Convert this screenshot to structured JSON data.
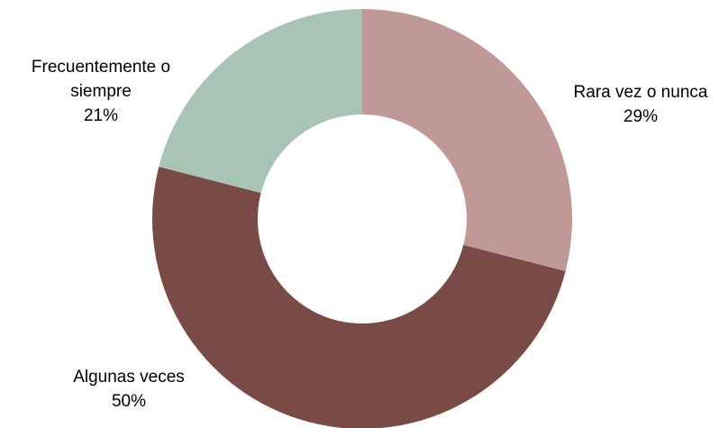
{
  "chart_data": {
    "type": "pie",
    "variant": "donut",
    "title": "",
    "legend": "none",
    "slices": [
      {
        "key": "rara",
        "name": "Rara vez o nunca",
        "value": 29,
        "value_label": "29%",
        "color": "#c09896"
      },
      {
        "key": "algunas",
        "name": "Algunas veces",
        "value": 50,
        "value_label": "50%",
        "color": "#7a4b46"
      },
      {
        "key": "frecuente",
        "name": "Frecuentemente o siempre",
        "value": 21,
        "value_label": "21%",
        "color": "#a8c4b5"
      }
    ]
  }
}
